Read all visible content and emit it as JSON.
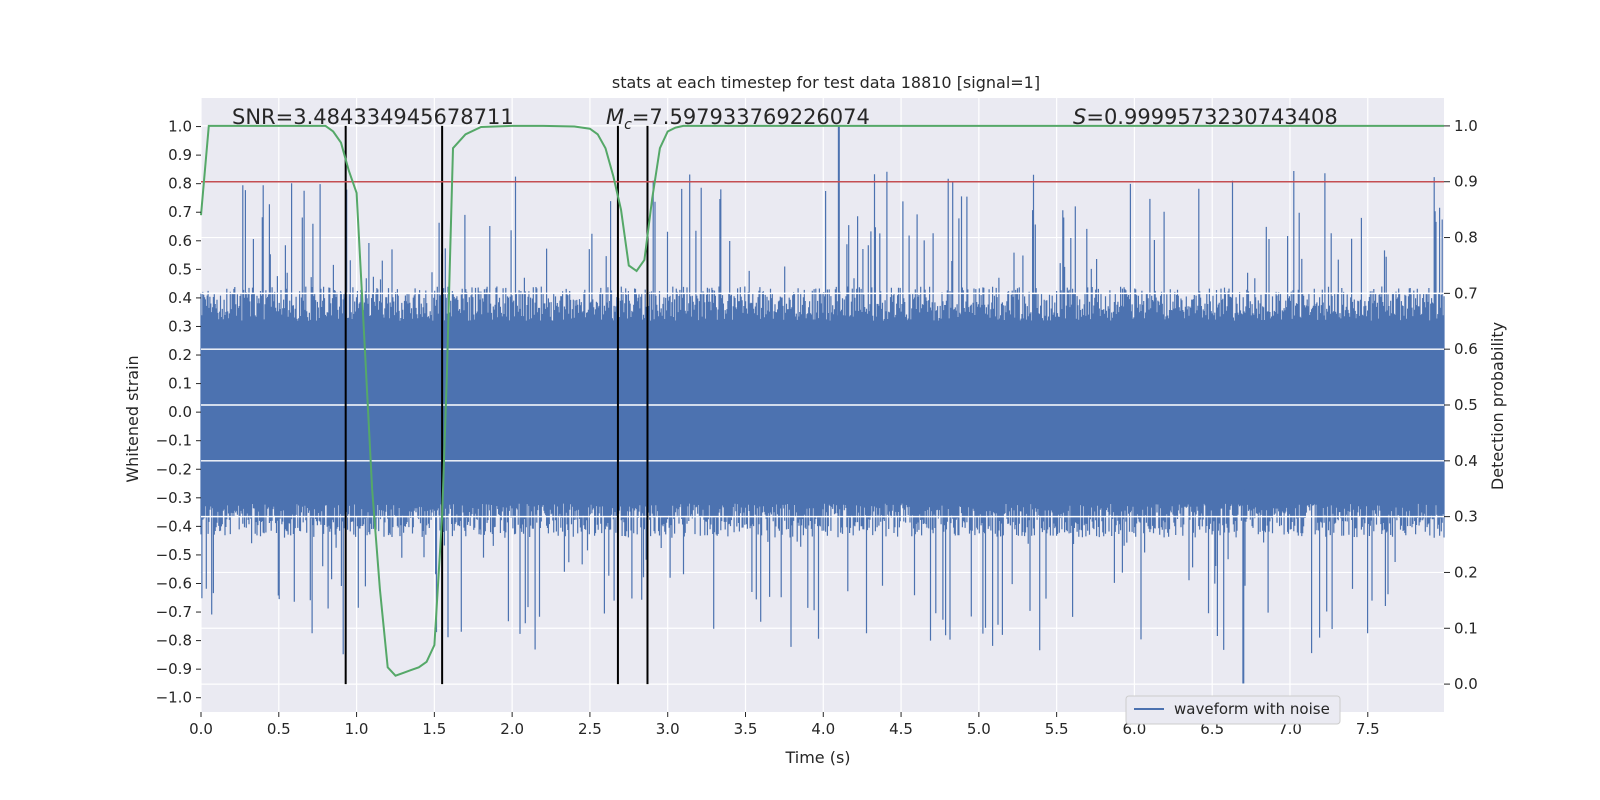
{
  "chart_data": {
    "type": "line",
    "title": "stats at each timestep for test data 18810 [signal=1]",
    "xlabel": "Time (s)",
    "ylabel": "Whitened strain",
    "y2label": "Detection probability",
    "xlim": [
      0.0,
      7.99
    ],
    "ylim": [
      -1.05,
      1.1
    ],
    "y2lim": [
      -0.05,
      1.05
    ],
    "x_ticks": [
      "0.0",
      "0.5",
      "1.0",
      "1.5",
      "2.0",
      "2.5",
      "3.0",
      "3.5",
      "4.0",
      "4.5",
      "5.0",
      "5.5",
      "6.0",
      "6.5",
      "7.0",
      "7.5"
    ],
    "x_tick_values": [
      0.0,
      0.5,
      1.0,
      1.5,
      2.0,
      2.5,
      3.0,
      3.5,
      4.0,
      4.5,
      5.0,
      5.5,
      6.0,
      6.5,
      7.0,
      7.5
    ],
    "y_ticks": [
      "−1.0",
      "−0.9",
      "−0.8",
      "−0.7",
      "−0.6",
      "−0.5",
      "−0.4",
      "−0.3",
      "−0.2",
      "−0.1",
      "0.0",
      "0.1",
      "0.2",
      "0.3",
      "0.4",
      "0.5",
      "0.6",
      "0.7",
      "0.8",
      "0.9",
      "1.0"
    ],
    "y_tick_values": [
      -1.0,
      -0.9,
      -0.8,
      -0.7,
      -0.6,
      -0.5,
      -0.4,
      -0.3,
      -0.2,
      -0.1,
      0.0,
      0.1,
      0.2,
      0.3,
      0.4,
      0.5,
      0.6,
      0.7,
      0.8,
      0.9,
      1.0
    ],
    "y2_ticks": [
      "0.0",
      "0.1",
      "0.2",
      "0.3",
      "0.4",
      "0.5",
      "0.6",
      "0.7",
      "0.8",
      "0.9",
      "1.0"
    ],
    "y2_tick_values": [
      0.0,
      0.1,
      0.2,
      0.3,
      0.4,
      0.5,
      0.6,
      0.7,
      0.8,
      0.9,
      1.0
    ],
    "annotations": {
      "snr": "SNR=3.484334945678711",
      "mc_symbol": "M",
      "mc_sub": "c",
      "mc_value": "=7.597933769226074",
      "s_symbol": "S",
      "s_value": "=0.9999573230743408"
    },
    "legend": {
      "label": "waveform with noise",
      "placement": "lower-right"
    },
    "threshold": {
      "value": 0.9,
      "axis": "y2",
      "color": "#c44e52"
    },
    "vlines_x": [
      0.93,
      1.55,
      2.68,
      2.87
    ],
    "vline_range_y2": [
      0.0,
      1.0
    ],
    "waveform": {
      "name": "waveform with noise",
      "color": "#4c72b0",
      "samples": 1400,
      "typical_amplitude": 0.32,
      "peak_amplitude": 0.85,
      "max_peak": {
        "x": 4.1,
        "y": 1.0
      },
      "min_peak": {
        "x": 6.7,
        "y": -0.95
      }
    },
    "probability_series": {
      "name": "detection probability",
      "color": "#55a868",
      "x": [
        0.0,
        0.05,
        0.1,
        0.2,
        0.4,
        0.6,
        0.8,
        0.85,
        0.9,
        0.95,
        1.0,
        1.05,
        1.1,
        1.15,
        1.2,
        1.25,
        1.3,
        1.35,
        1.4,
        1.45,
        1.5,
        1.55,
        1.58,
        1.62,
        1.7,
        1.8,
        2.0,
        2.2,
        2.4,
        2.5,
        2.55,
        2.6,
        2.65,
        2.7,
        2.75,
        2.8,
        2.85,
        2.9,
        2.95,
        3.0,
        3.05,
        3.1,
        3.2,
        3.5,
        4.0,
        5.0,
        6.0,
        7.0,
        7.99
      ],
      "y": [
        0.84,
        1.0,
        1.0,
        1.0,
        1.0,
        1.0,
        1.0,
        0.99,
        0.97,
        0.92,
        0.88,
        0.62,
        0.35,
        0.17,
        0.03,
        0.015,
        0.02,
        0.025,
        0.03,
        0.04,
        0.07,
        0.3,
        0.55,
        0.96,
        0.985,
        0.998,
        1.0,
        1.0,
        0.999,
        0.995,
        0.985,
        0.96,
        0.91,
        0.85,
        0.75,
        0.74,
        0.76,
        0.87,
        0.96,
        0.99,
        0.997,
        1.0,
        1.0,
        1.0,
        1.0,
        1.0,
        1.0,
        1.0,
        1.0
      ]
    }
  }
}
